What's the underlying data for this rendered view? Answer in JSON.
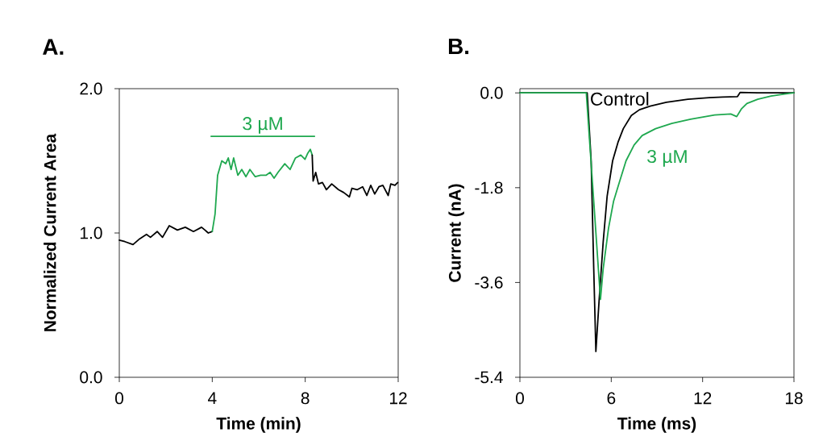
{
  "chart_data": [
    {
      "type": "line",
      "title": "A.",
      "xlabel": "Time (min)",
      "ylabel": "Normalized Current Area",
      "xlim": [
        0,
        12
      ],
      "ylim": [
        0,
        2
      ],
      "xticks": [
        0,
        4,
        8,
        12
      ],
      "yticks": [
        {
          "value": 0,
          "label": "0.0"
        },
        {
          "value": 1,
          "label": "1.0"
        },
        {
          "value": 2,
          "label": "2.0"
        }
      ],
      "marker": "none",
      "line_style": "solid",
      "series": [
        {
          "color": "#000000",
          "x": [
            0,
            0.24,
            0.59,
            0.88,
            1.17,
            1.34,
            1.63,
            1.86,
            2.15,
            2.5,
            2.84,
            3.19,
            3.54,
            3.83,
            4.0
          ],
          "values": [
            0.95,
            0.94,
            0.92,
            0.96,
            0.99,
            0.97,
            1.01,
            0.97,
            1.05,
            1.02,
            1.04,
            1.01,
            1.04,
            1.0,
            1.01
          ]
        },
        {
          "color": "#1fa84f",
          "x": [
            4.0,
            4.12,
            4.23,
            4.41,
            4.58,
            4.69,
            4.81,
            4.92,
            5.1,
            5.27,
            5.45,
            5.62,
            5.85,
            6.08,
            6.31,
            6.49,
            6.66,
            6.83,
            7.12,
            7.35,
            7.58,
            7.81,
            7.99,
            8.1,
            8.22,
            8.3
          ],
          "values": [
            1.01,
            1.13,
            1.4,
            1.5,
            1.48,
            1.52,
            1.44,
            1.52,
            1.4,
            1.44,
            1.39,
            1.44,
            1.39,
            1.4,
            1.4,
            1.42,
            1.38,
            1.42,
            1.48,
            1.44,
            1.52,
            1.54,
            1.51,
            1.55,
            1.58,
            1.54
          ]
        },
        {
          "color": "#000000",
          "x": [
            8.3,
            8.34,
            8.45,
            8.57,
            8.74,
            8.91,
            9.14,
            9.43,
            9.66,
            9.9,
            10.01,
            10.24,
            10.47,
            10.65,
            10.82,
            10.99,
            11.17,
            11.34,
            11.57,
            11.68,
            11.86,
            11.98
          ],
          "values": [
            1.54,
            1.36,
            1.42,
            1.34,
            1.35,
            1.3,
            1.34,
            1.3,
            1.28,
            1.25,
            1.31,
            1.3,
            1.32,
            1.26,
            1.33,
            1.27,
            1.32,
            1.33,
            1.26,
            1.34,
            1.33,
            1.35
          ]
        },
        {
          "name": "3 µM",
          "color": "#1fa84f",
          "x": [
            3.95,
            8.4
          ],
          "values": [
            1.67,
            1.67
          ]
        }
      ]
    },
    {
      "type": "line",
      "title": "B.",
      "xlabel": "Time (ms)",
      "ylabel": "Current (nA)",
      "xlim": [
        0,
        18
      ],
      "ylim": [
        -5.4,
        0.08
      ],
      "xticks": [
        0,
        6,
        12,
        18
      ],
      "yticks": [
        -5.4,
        -3.6,
        -1.8,
        {
          "value": 0,
          "label": "0.0"
        }
      ],
      "marker": "none",
      "line_style": "solid",
      "series": [
        {
          "name": "Control",
          "color": "#000000",
          "x": [
            0,
            1,
            2,
            3,
            4,
            4.3,
            4.42,
            4.68,
            4.85,
            4.99,
            5.2,
            5.47,
            5.73,
            6.09,
            6.44,
            6.79,
            7.32,
            7.85,
            8.56,
            9.62,
            11.03,
            12.44,
            13.32,
            14.29,
            14.47,
            15.62,
            17,
            18
          ],
          "values": [
            0,
            0,
            0,
            0,
            0,
            0,
            0,
            -1.29,
            -3.34,
            -4.91,
            -3.95,
            -2.83,
            -1.96,
            -1.29,
            -0.94,
            -0.68,
            -0.43,
            -0.32,
            -0.25,
            -0.18,
            -0.12,
            -0.09,
            -0.08,
            -0.07,
            0.01,
            0,
            0,
            0
          ]
        },
        {
          "name": "3 µM",
          "color": "#1fa84f",
          "x": [
            0,
            1,
            2,
            3,
            4,
            4.36,
            4.85,
            5.29,
            5.47,
            5.82,
            6.15,
            6.53,
            6.97,
            7.5,
            8.03,
            8.91,
            9.97,
            11.21,
            12.79,
            13.85,
            14.24,
            14.56,
            14.91,
            15.62,
            16.5,
            17.38,
            18
          ],
          "values": [
            0,
            0,
            0,
            0,
            0,
            0,
            -2.06,
            -3.92,
            -3.34,
            -2.57,
            -2.06,
            -1.7,
            -1.29,
            -0.99,
            -0.81,
            -0.68,
            -0.58,
            -0.5,
            -0.42,
            -0.4,
            -0.45,
            -0.3,
            -0.2,
            -0.12,
            -0.06,
            -0.02,
            0
          ]
        }
      ]
    }
  ]
}
